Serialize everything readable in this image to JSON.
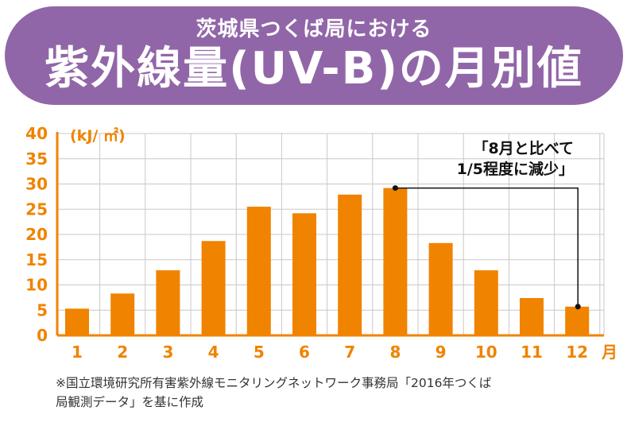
{
  "header": {
    "subtitle": "茨城県つくば局における",
    "title": "紫外線量(UV-B)の月別値"
  },
  "chart_data": {
    "type": "bar",
    "title": "紫外線量(UV-B)の月別値",
    "ylabel": "(kJ/ ㎡)",
    "xlabel": "月",
    "categories": [
      "1",
      "2",
      "3",
      "4",
      "5",
      "6",
      "7",
      "8",
      "9",
      "10",
      "11",
      "12"
    ],
    "values": [
      5.3,
      8.3,
      12.9,
      18.7,
      25.5,
      24.2,
      27.9,
      29.2,
      18.3,
      12.9,
      7.4,
      5.7
    ],
    "ylim": [
      0,
      40
    ],
    "yticks": [
      "0",
      "5",
      "10",
      "15",
      "20",
      "25",
      "30",
      "35",
      "40"
    ],
    "bar_color": "#f08300",
    "axis_color": "#f08300",
    "grid": true,
    "annotation": {
      "lines": [
        "「8月と比べて",
        "1/5程度に減少」"
      ],
      "from_category": "8",
      "to_category": "12"
    }
  },
  "footnote": {
    "line1": "※国立環境研究所有害紫外線モニタリングネットワーク事務局「2016年つくば",
    "line2": "局観測データ」を基に作成"
  },
  "colors": {
    "banner": "#9166a8",
    "bar": "#f08300",
    "grid": "#c8c8c8"
  }
}
